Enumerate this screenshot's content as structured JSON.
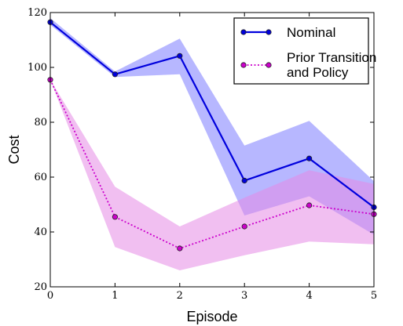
{
  "chart_data": {
    "type": "line",
    "xlabel": "Episode",
    "ylabel": "Cost",
    "xlim": [
      0,
      5
    ],
    "ylim": [
      20,
      120
    ],
    "xticks": [
      0,
      1,
      2,
      3,
      4,
      5
    ],
    "yticks": [
      20,
      40,
      60,
      80,
      100,
      120
    ],
    "legend_position": "top-right",
    "x": [
      0,
      1,
      2,
      3,
      4,
      5
    ],
    "series": [
      {
        "name": "Nominal",
        "color": "#0000dd",
        "band_color": "#7b7bff",
        "line_style": "solid",
        "values": [
          116.5,
          97.5,
          104.2,
          58.7,
          66.8,
          49.0
        ],
        "lower": [
          115.5,
          96.5,
          97.5,
          46.0,
          53.0,
          39.0
        ],
        "upper": [
          118.0,
          98.5,
          110.5,
          71.5,
          80.5,
          58.5
        ]
      },
      {
        "name": "Prior Transition and Policy",
        "name_lines": [
          "Prior Transition",
          "and Policy"
        ],
        "color": "#cc00cc",
        "band_color": "#e58be5",
        "line_style": "dotted",
        "values": [
          95.5,
          45.5,
          34.0,
          42.0,
          49.7,
          46.5
        ],
        "lower": [
          95.5,
          34.5,
          26.0,
          31.5,
          36.5,
          35.5
        ],
        "upper": [
          95.5,
          56.5,
          42.0,
          52.5,
          62.5,
          57.5
        ]
      }
    ]
  }
}
